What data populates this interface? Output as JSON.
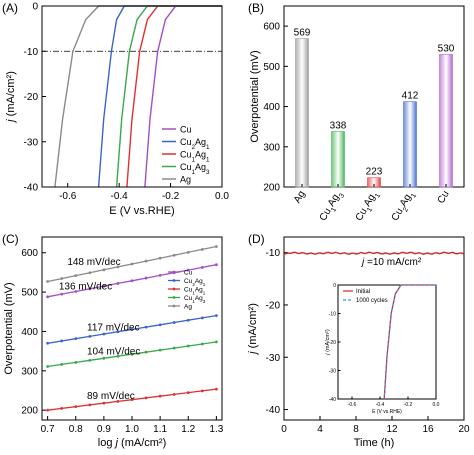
{
  "chart_data": [
    {
      "panel": "(A)",
      "type": "line",
      "xlabel": "E (V vs.RHE)",
      "ylabel": "j (mA/cm²)",
      "xlim": [
        -0.7,
        0.0
      ],
      "ylim": [
        -40,
        0
      ],
      "xticks": [
        "-0.6",
        "-0.4",
        "-0.2",
        "0.0"
      ],
      "yticks": [
        "0",
        "-10",
        "-20",
        "-30",
        "-40"
      ],
      "reference_line": {
        "y": -10,
        "style": "dash-dot"
      },
      "series": [
        {
          "name": "Cu",
          "color": "#a24fc4",
          "points": [
            [
              0.0,
              0
            ],
            [
              -0.18,
              0
            ],
            [
              -0.22,
              -3
            ],
            [
              -0.25,
              -10
            ],
            [
              -0.28,
              -25
            ],
            [
              -0.3,
              -40
            ]
          ]
        },
        {
          "name": "Cu2Ag1",
          "label_main": "Cu",
          "label_sub1": "2",
          "label_mid": "Ag",
          "label_sub2": "1",
          "color": "#3b64c8",
          "points": [
            [
              0.0,
              0
            ],
            [
              -0.38,
              0
            ],
            [
              -0.41,
              -3
            ],
            [
              -0.43,
              -10
            ],
            [
              -0.46,
              -25
            ],
            [
              -0.48,
              -40
            ]
          ]
        },
        {
          "name": "Cu1Ag1",
          "label_main": "Cu",
          "label_sub1": "1",
          "label_mid": "Ag",
          "label_sub2": "1",
          "color": "#e0302f",
          "points": [
            [
              0.0,
              0
            ],
            [
              -0.25,
              0
            ],
            [
              -0.29,
              -3
            ],
            [
              -0.32,
              -10
            ],
            [
              -0.35,
              -25
            ],
            [
              -0.37,
              -40
            ]
          ]
        },
        {
          "name": "Cu1Ag3",
          "label_main": "Cu",
          "label_sub1": "1",
          "label_mid": "Ag",
          "label_sub2": "3",
          "color": "#3aa84a",
          "points": [
            [
              0.0,
              0
            ],
            [
              -0.29,
              0
            ],
            [
              -0.33,
              -3
            ],
            [
              -0.36,
              -10
            ],
            [
              -0.39,
              -25
            ],
            [
              -0.41,
              -40
            ]
          ]
        },
        {
          "name": "Ag",
          "color": "#8a8a8a",
          "points": [
            [
              0.0,
              0
            ],
            [
              -0.48,
              0
            ],
            [
              -0.53,
              -3
            ],
            [
              -0.58,
              -10
            ],
            [
              -0.62,
              -25
            ],
            [
              -0.65,
              -40
            ]
          ]
        }
      ]
    },
    {
      "panel": "(B)",
      "type": "bar",
      "ylabel": "Overpotential (mV)",
      "ylim": [
        200,
        650
      ],
      "yticks": [
        "200",
        "300",
        "400",
        "500",
        "600"
      ],
      "categories": [
        {
          "main": "Ag",
          "s1": "",
          "mid": "",
          "s2": ""
        },
        {
          "main": "Cu",
          "s1": "1",
          "mid": "Ag",
          "s2": "3"
        },
        {
          "main": "Cu",
          "s1": "1",
          "mid": "Ag",
          "s2": "1"
        },
        {
          "main": "Cu",
          "s1": "2",
          "mid": "Ag",
          "s2": "1"
        },
        {
          "main": "Cu",
          "s1": "",
          "mid": "",
          "s2": ""
        }
      ],
      "values": [
        569,
        338,
        223,
        412,
        530
      ],
      "value_labels": [
        "569",
        "338",
        "223",
        "412",
        "530"
      ],
      "colors": [
        "#9c9c9c",
        "#4cb85a",
        "#e34040",
        "#4a70d0",
        "#b46ad0"
      ]
    },
    {
      "panel": "(C)",
      "type": "line",
      "xlabel": "log j (mA/cm²)",
      "ylabel": "Overpotential (mV)",
      "xlim": [
        0.68,
        1.32
      ],
      "ylim": [
        175,
        640
      ],
      "xticks": [
        "0.7",
        "0.8",
        "0.9",
        "1.0",
        "1.1",
        "1.2",
        "1.3"
      ],
      "yticks": [
        "200",
        "300",
        "400",
        "500",
        "600"
      ],
      "series": [
        {
          "name": "Cu",
          "label_main": "Cu",
          "label_sub1": "",
          "label_mid": "",
          "label_sub2": "",
          "color": "#a24fc4",
          "y0": 488,
          "slope": 136,
          "annotation": "136 mV/dec"
        },
        {
          "name": "Cu2Ag1",
          "label_main": "Cu",
          "label_sub1": "2",
          "label_mid": "Ag",
          "label_sub2": "1",
          "color": "#3b64c8",
          "y0": 370,
          "slope": 117,
          "annotation": "117 mV/dec"
        },
        {
          "name": "Cu1Ag1",
          "label_main": "Cu",
          "label_sub1": "1",
          "label_mid": "Ag",
          "label_sub2": "1",
          "color": "#e0302f",
          "y0": 200,
          "slope": 89,
          "annotation": "89 mV/dec"
        },
        {
          "name": "Cu1Ag3",
          "label_main": "Cu",
          "label_sub1": "1",
          "label_mid": "Ag",
          "label_sub2": "3",
          "color": "#3aa84a",
          "y0": 311,
          "slope": 104,
          "annotation": "104 mV/dec"
        },
        {
          "name": "Ag",
          "label_main": "Ag",
          "label_sub1": "",
          "label_mid": "",
          "label_sub2": "",
          "color": "#8a8a8a",
          "y0": 527,
          "slope": 148,
          "annotation": "148 mV/dec"
        }
      ],
      "x_start": 0.7,
      "x_end": 1.3
    },
    {
      "panel": "(D)",
      "type": "line",
      "xlabel": "Time (h)",
      "ylabel": "j (mA/cm²)",
      "xlim": [
        0,
        20
      ],
      "ylim": [
        -42,
        -7
      ],
      "xticks": [
        "0",
        "4",
        "8",
        "12",
        "16",
        "20"
      ],
      "yticks": [
        "-10",
        "-20",
        "-30",
        "-40"
      ],
      "annotation": "j =10 mA/cm²",
      "series": [
        {
          "name": "stability",
          "color": "#d02828",
          "value": -10.1
        }
      ],
      "inset": {
        "xlabel": "E (V vs.RHE)",
        "ylabel": "j (mA/cm²)",
        "xlim": [
          -0.7,
          0.0
        ],
        "ylim": [
          -40,
          0
        ],
        "xticks": [
          "-0.6",
          "-0.4",
          "-0.2",
          "0.0"
        ],
        "yticks": [
          "0",
          "-10",
          "-20",
          "-30",
          "-40"
        ],
        "legend": [
          "Initial",
          "1000 cycles"
        ],
        "colors": [
          "#d02828",
          "#4a8ad4"
        ],
        "points": [
          [
            0.0,
            0
          ],
          [
            -0.25,
            0
          ],
          [
            -0.29,
            -3
          ],
          [
            -0.32,
            -10
          ],
          [
            -0.35,
            -25
          ],
          [
            -0.37,
            -40
          ]
        ]
      }
    }
  ]
}
